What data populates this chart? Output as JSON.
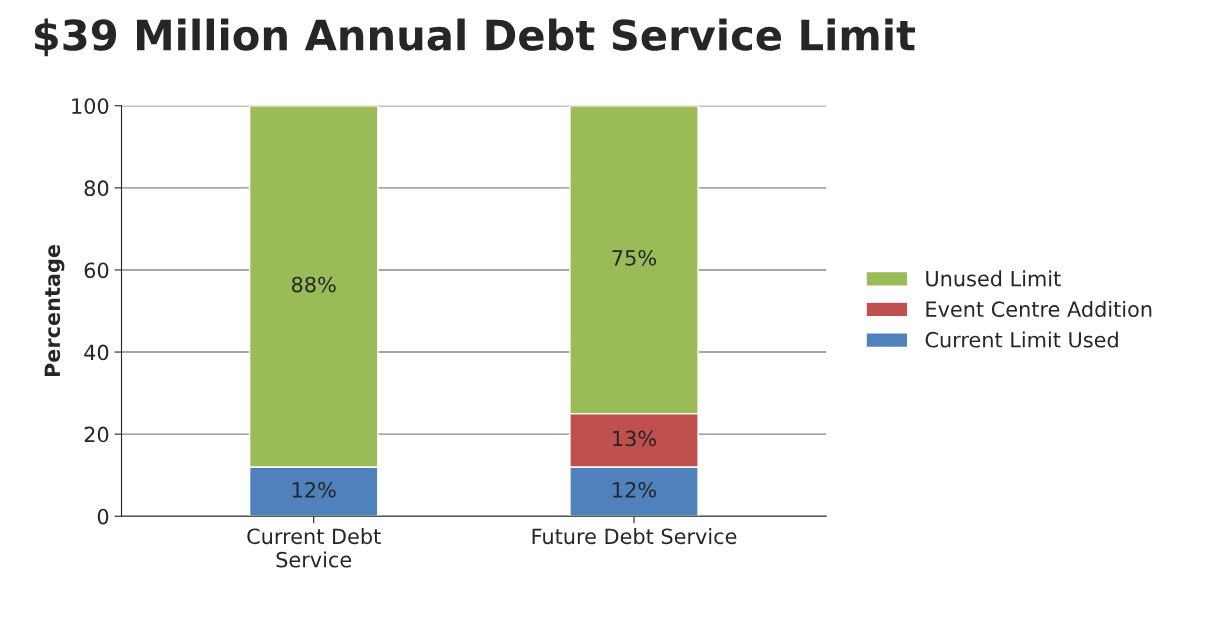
{
  "chart_data": {
    "type": "bar",
    "title": "$39 Million Annual Debt Service Limit",
    "ylabel": "Percentage",
    "categories": [
      "Current Debt\nService",
      "Future Debt Service"
    ],
    "stacked": true,
    "ylim": [
      0,
      100
    ],
    "yticks": [
      0,
      20,
      40,
      60,
      80,
      100
    ],
    "grid": "y",
    "legend": "right",
    "series": [
      {
        "name": "Current Limit Used",
        "color": "#4f81bd",
        "values": [
          12,
          12
        ],
        "value_labels": [
          "12%",
          "12%"
        ]
      },
      {
        "name": "Event Centre Addition",
        "color": "#c0504d",
        "values": [
          0,
          13
        ],
        "value_labels": [
          null,
          "13%"
        ]
      },
      {
        "name": "Unused Limit",
        "color": "#9bbb59",
        "values": [
          88,
          75
        ],
        "value_labels": [
          "88%",
          "75%"
        ]
      }
    ]
  }
}
